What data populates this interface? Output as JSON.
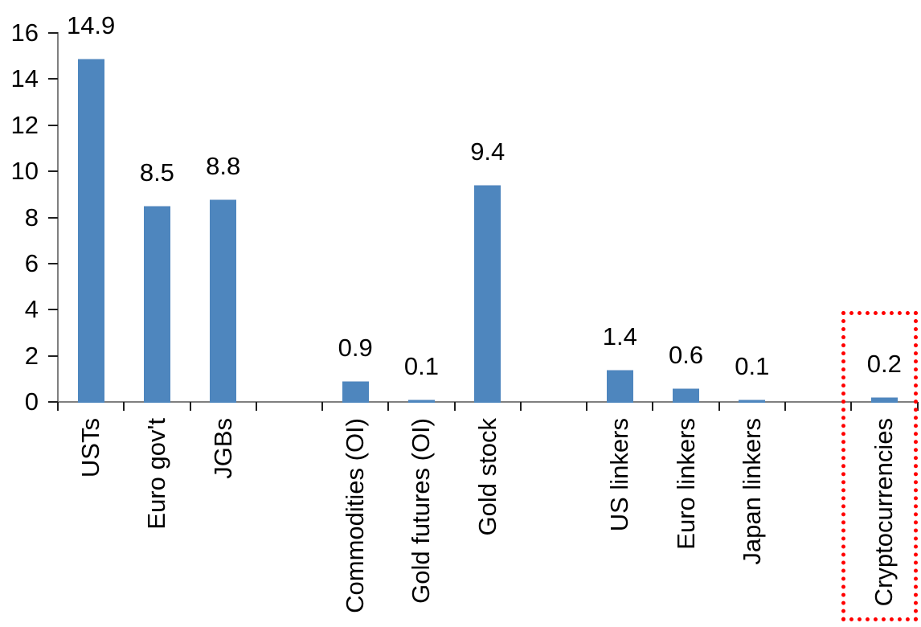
{
  "chart_data": {
    "type": "bar",
    "title": "",
    "xlabel": "",
    "ylabel": "",
    "categories": [
      "USTs",
      "Euro gov't",
      "JGBs",
      "Commodities (OI)",
      "Gold futures (OI)",
      "Gold stock",
      "US linkers",
      "Euro linkers",
      "Japan linkers",
      "Cryptocurrencies"
    ],
    "values": [
      14.9,
      8.5,
      8.8,
      0.9,
      0.1,
      9.4,
      1.4,
      0.6,
      0.1,
      0.2
    ],
    "data_labels": [
      "14.9",
      "8.5",
      "8.8",
      "0.9",
      "0.1",
      "9.4",
      "1.4",
      "0.6",
      "0.1",
      "0.2"
    ],
    "slot_layout": [
      0,
      1,
      2,
      null,
      3,
      4,
      5,
      null,
      6,
      7,
      8,
      null,
      9
    ],
    "ylim": [
      0,
      16
    ],
    "yticks": [
      0,
      2,
      4,
      6,
      8,
      10,
      12,
      14,
      16
    ],
    "grid": false,
    "legend": false,
    "bar_color": "#4e86be",
    "highlight": {
      "category": "Cryptocurrencies",
      "style": "dotted-box",
      "color": "#ff0000"
    }
  }
}
